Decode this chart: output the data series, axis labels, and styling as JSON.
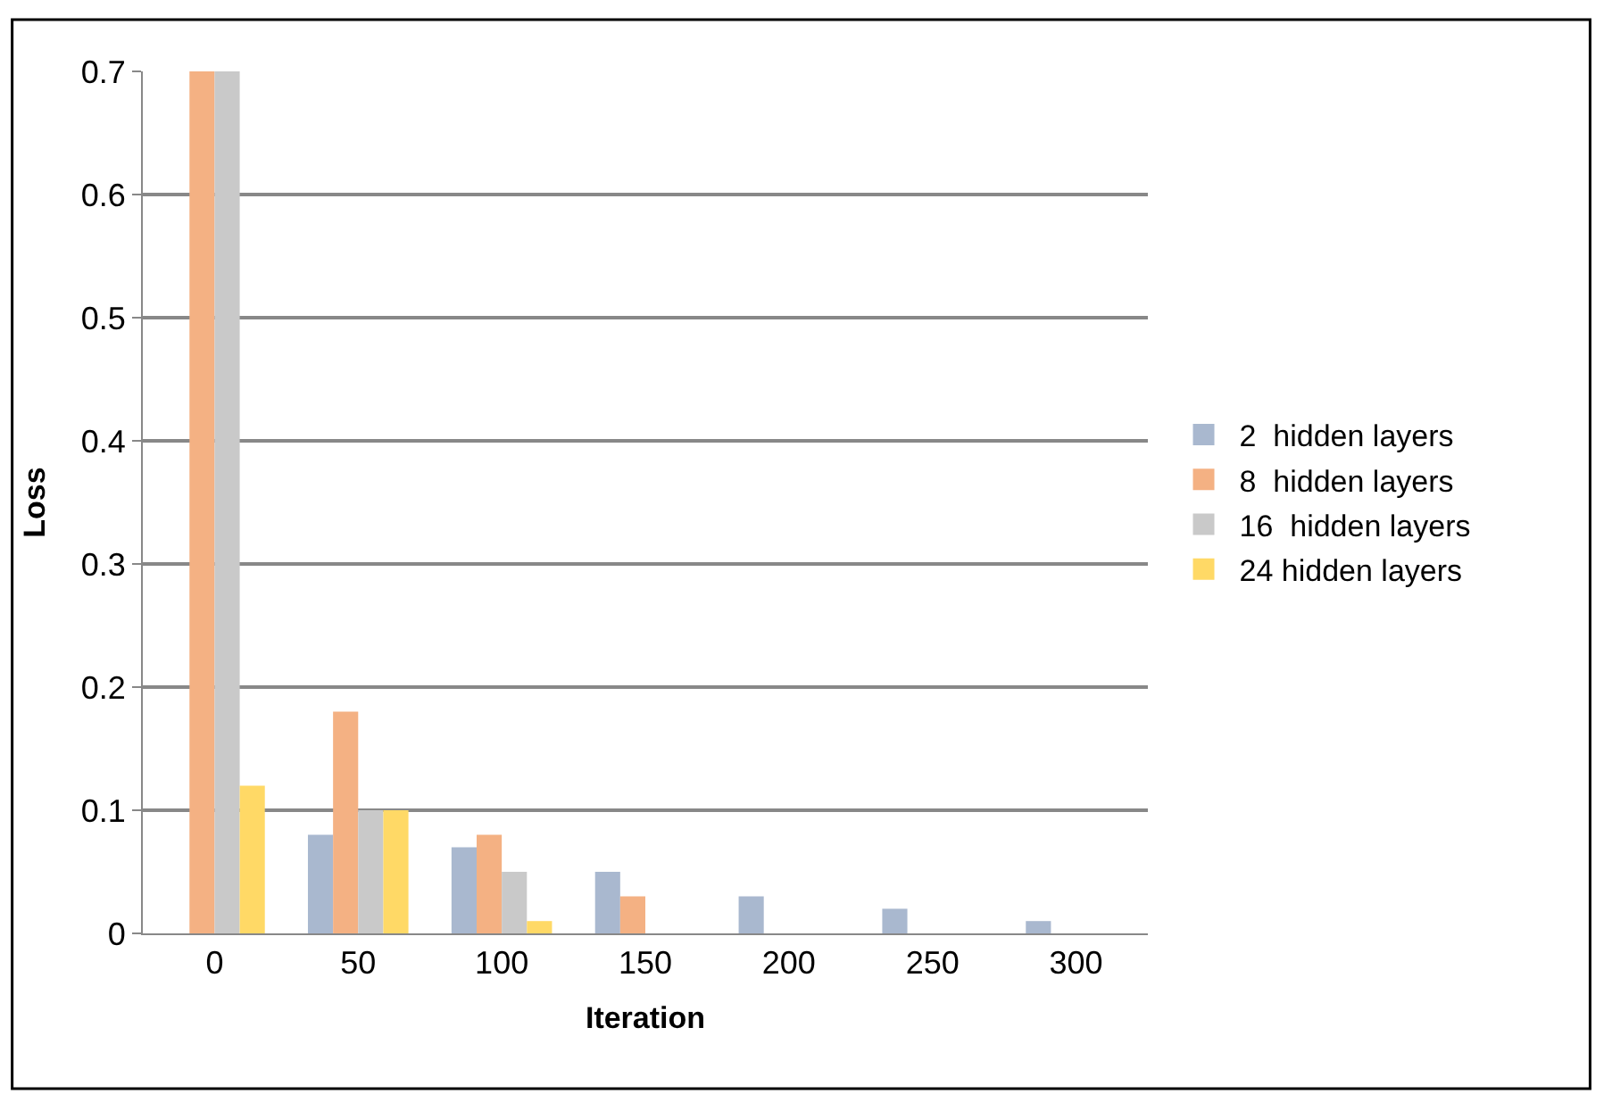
{
  "chart_data": {
    "type": "bar",
    "xlabel": "Iteration",
    "ylabel": "Loss",
    "categories": [
      "0",
      "50",
      "100",
      "150",
      "200",
      "250",
      "300"
    ],
    "series": [
      {
        "name": "2  hidden layers",
        "color": "#a9b8cf",
        "values": [
          0,
          0.08,
          0.07,
          0.05,
          0.03,
          0.02,
          0.01
        ]
      },
      {
        "name": "8  hidden layers",
        "color": "#f4b183",
        "values": [
          0.7,
          0.18,
          0.08,
          0.03,
          0,
          0,
          0
        ]
      },
      {
        "name": "16  hidden layers",
        "color": "#c9c9c9",
        "values": [
          0.7,
          0.1,
          0.05,
          0,
          0,
          0,
          0
        ]
      },
      {
        "name": "24 hidden layers",
        "color": "#ffd966",
        "values": [
          0.12,
          0.1,
          0.01,
          0,
          0,
          0,
          0
        ]
      }
    ],
    "ylim": [
      0,
      0.7
    ],
    "yticks": [
      0,
      0.1,
      0.2,
      0.3,
      0.4,
      0.5,
      0.6,
      0.7
    ],
    "grid": "y",
    "legend": "right"
  }
}
